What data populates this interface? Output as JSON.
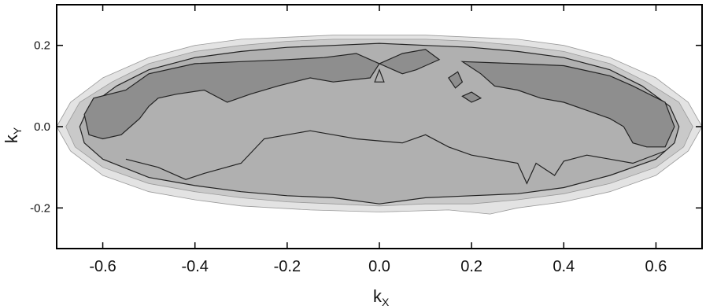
{
  "chart_data": {
    "type": "contour",
    "xlabel": "k",
    "xlabel_sub": "X",
    "ylabel": "k",
    "ylabel_sub": "Y",
    "xlim": [
      -0.7,
      0.7
    ],
    "ylim": [
      -0.3,
      0.3
    ],
    "x_ticks": [
      -0.6,
      -0.4,
      -0.2,
      0.0,
      0.2,
      0.4,
      0.6
    ],
    "x_tick_labels": [
      "-0.6",
      "-0.4",
      "-0.2",
      "0.0",
      "0.2",
      "0.4",
      "0.6"
    ],
    "y_ticks": [
      -0.2,
      0.0,
      0.2
    ],
    "y_tick_labels": [
      "-0.2",
      "0.0",
      "0.2"
    ],
    "grid": false,
    "colors": {
      "level_1": "#e3e3e3",
      "level_2": "#c9c9c9",
      "level_3": "#b0b0b0",
      "level_4": "#8e8e8e",
      "contour_line": "#222222"
    },
    "contours": [
      {
        "level": 1,
        "points": [
          [
            -0.7,
            0.0
          ],
          [
            -0.67,
            0.06
          ],
          [
            -0.6,
            0.12
          ],
          [
            -0.5,
            0.17
          ],
          [
            -0.4,
            0.2
          ],
          [
            -0.3,
            0.215
          ],
          [
            -0.2,
            0.22
          ],
          [
            -0.1,
            0.225
          ],
          [
            0.0,
            0.225
          ],
          [
            0.1,
            0.225
          ],
          [
            0.2,
            0.22
          ],
          [
            0.3,
            0.215
          ],
          [
            0.4,
            0.2
          ],
          [
            0.5,
            0.17
          ],
          [
            0.6,
            0.12
          ],
          [
            0.67,
            0.06
          ],
          [
            0.7,
            0.0
          ],
          [
            0.67,
            -0.06
          ],
          [
            0.6,
            -0.12
          ],
          [
            0.5,
            -0.16
          ],
          [
            0.4,
            -0.185
          ],
          [
            0.3,
            -0.2
          ],
          [
            0.24,
            -0.215
          ],
          [
            0.15,
            -0.205
          ],
          [
            0.0,
            -0.21
          ],
          [
            -0.15,
            -0.205
          ],
          [
            -0.3,
            -0.195
          ],
          [
            -0.4,
            -0.18
          ],
          [
            -0.5,
            -0.16
          ],
          [
            -0.6,
            -0.12
          ],
          [
            -0.67,
            -0.06
          ]
        ]
      },
      {
        "level": 2,
        "points": [
          [
            -0.68,
            0.0
          ],
          [
            -0.65,
            0.06
          ],
          [
            -0.58,
            0.11
          ],
          [
            -0.5,
            0.155
          ],
          [
            -0.4,
            0.185
          ],
          [
            -0.3,
            0.2
          ],
          [
            -0.2,
            0.21
          ],
          [
            -0.1,
            0.215
          ],
          [
            0.0,
            0.215
          ],
          [
            0.1,
            0.215
          ],
          [
            0.2,
            0.21
          ],
          [
            0.3,
            0.2
          ],
          [
            0.4,
            0.185
          ],
          [
            0.5,
            0.155
          ],
          [
            0.58,
            0.11
          ],
          [
            0.65,
            0.06
          ],
          [
            0.68,
            0.0
          ],
          [
            0.66,
            -0.05
          ],
          [
            0.6,
            -0.1
          ],
          [
            0.5,
            -0.14
          ],
          [
            0.4,
            -0.165
          ],
          [
            0.3,
            -0.18
          ],
          [
            0.2,
            -0.19
          ],
          [
            0.1,
            -0.19
          ],
          [
            0.0,
            -0.195
          ],
          [
            -0.1,
            -0.19
          ],
          [
            -0.2,
            -0.185
          ],
          [
            -0.3,
            -0.175
          ],
          [
            -0.4,
            -0.16
          ],
          [
            -0.5,
            -0.14
          ],
          [
            -0.6,
            -0.1
          ],
          [
            -0.66,
            -0.05
          ]
        ]
      },
      {
        "level": 3,
        "points": [
          [
            -0.65,
            0.0
          ],
          [
            -0.63,
            0.05
          ],
          [
            -0.57,
            0.1
          ],
          [
            -0.5,
            0.14
          ],
          [
            -0.4,
            0.17
          ],
          [
            -0.3,
            0.185
          ],
          [
            -0.2,
            0.195
          ],
          [
            -0.1,
            0.2
          ],
          [
            0.0,
            0.205
          ],
          [
            0.1,
            0.2
          ],
          [
            0.2,
            0.195
          ],
          [
            0.3,
            0.185
          ],
          [
            0.4,
            0.17
          ],
          [
            0.5,
            0.14
          ],
          [
            0.57,
            0.1
          ],
          [
            0.63,
            0.05
          ],
          [
            0.65,
            0.0
          ],
          [
            0.64,
            -0.04
          ],
          [
            0.6,
            -0.08
          ],
          [
            0.5,
            -0.12
          ],
          [
            0.4,
            -0.15
          ],
          [
            0.3,
            -0.165
          ],
          [
            0.2,
            -0.17
          ],
          [
            0.1,
            -0.175
          ],
          [
            0.0,
            -0.19
          ],
          [
            -0.1,
            -0.175
          ],
          [
            -0.2,
            -0.17
          ],
          [
            -0.3,
            -0.16
          ],
          [
            -0.4,
            -0.145
          ],
          [
            -0.5,
            -0.125
          ],
          [
            -0.6,
            -0.08
          ],
          [
            -0.64,
            -0.04
          ]
        ]
      },
      {
        "level": 4,
        "points": [
          [
            -0.64,
            0.03
          ],
          [
            -0.62,
            0.07
          ],
          [
            -0.55,
            0.09
          ],
          [
            -0.5,
            0.13
          ],
          [
            -0.4,
            0.155
          ],
          [
            -0.3,
            0.16
          ],
          [
            -0.2,
            0.165
          ],
          [
            -0.12,
            0.17
          ],
          [
            -0.05,
            0.18
          ],
          [
            0.0,
            0.155
          ],
          [
            -0.02,
            0.12
          ],
          [
            -0.1,
            0.11
          ],
          [
            -0.15,
            0.12
          ],
          [
            -0.22,
            0.1
          ],
          [
            -0.28,
            0.08
          ],
          [
            -0.33,
            0.06
          ],
          [
            -0.38,
            0.09
          ],
          [
            -0.44,
            0.08
          ],
          [
            -0.48,
            0.07
          ],
          [
            -0.5,
            0.05
          ],
          [
            -0.52,
            0.02
          ],
          [
            -0.54,
            0.0
          ],
          [
            -0.56,
            -0.02
          ],
          [
            -0.6,
            -0.03
          ],
          [
            -0.63,
            -0.02
          ]
        ]
      },
      {
        "level": 4,
        "points": [
          [
            0.0,
            0.155
          ],
          [
            0.05,
            0.18
          ],
          [
            0.1,
            0.19
          ],
          [
            0.13,
            0.165
          ],
          [
            0.1,
            0.15
          ],
          [
            0.08,
            0.14
          ],
          [
            0.05,
            0.13
          ]
        ]
      },
      {
        "level": 4,
        "points": [
          [
            0.18,
            0.16
          ],
          [
            0.3,
            0.155
          ],
          [
            0.4,
            0.15
          ],
          [
            0.5,
            0.125
          ],
          [
            0.55,
            0.1
          ],
          [
            0.62,
            0.06
          ],
          [
            0.64,
            0.0
          ],
          [
            0.62,
            -0.05
          ],
          [
            0.58,
            -0.05
          ],
          [
            0.55,
            -0.04
          ],
          [
            0.53,
            0.0
          ],
          [
            0.5,
            0.02
          ],
          [
            0.45,
            0.04
          ],
          [
            0.4,
            0.06
          ],
          [
            0.35,
            0.07
          ],
          [
            0.3,
            0.09
          ],
          [
            0.25,
            0.1
          ],
          [
            0.22,
            0.13
          ]
        ]
      },
      {
        "level": 4,
        "points": [
          [
            0.15,
            0.12
          ],
          [
            0.17,
            0.135
          ],
          [
            0.18,
            0.11
          ],
          [
            0.165,
            0.095
          ]
        ]
      },
      {
        "level": 4,
        "points": [
          [
            0.18,
            0.075
          ],
          [
            0.2,
            0.085
          ],
          [
            0.22,
            0.07
          ],
          [
            0.2,
            0.06
          ]
        ]
      },
      {
        "level": 3,
        "points": [
          [
            -0.01,
            0.11
          ],
          [
            0.0,
            0.14
          ],
          [
            0.01,
            0.11
          ]
        ]
      }
    ],
    "contour_lines": [
      {
        "points": [
          [
            -0.55,
            -0.08
          ],
          [
            -0.48,
            -0.1
          ],
          [
            -0.42,
            -0.13
          ],
          [
            -0.38,
            -0.115
          ],
          [
            -0.3,
            -0.09
          ],
          [
            -0.25,
            -0.03
          ],
          [
            -0.2,
            -0.02
          ],
          [
            -0.15,
            -0.01
          ],
          [
            -0.1,
            -0.02
          ],
          [
            -0.05,
            -0.03
          ],
          [
            0.0,
            -0.035
          ],
          [
            0.05,
            -0.04
          ],
          [
            0.1,
            -0.02
          ],
          [
            0.15,
            -0.05
          ],
          [
            0.2,
            -0.07
          ],
          [
            0.25,
            -0.08
          ],
          [
            0.3,
            -0.09
          ],
          [
            0.32,
            -0.14
          ],
          [
            0.34,
            -0.09
          ],
          [
            0.38,
            -0.12
          ],
          [
            0.4,
            -0.085
          ],
          [
            0.45,
            -0.07
          ],
          [
            0.5,
            -0.08
          ],
          [
            0.55,
            -0.09
          ],
          [
            0.62,
            -0.06
          ]
        ]
      }
    ]
  }
}
